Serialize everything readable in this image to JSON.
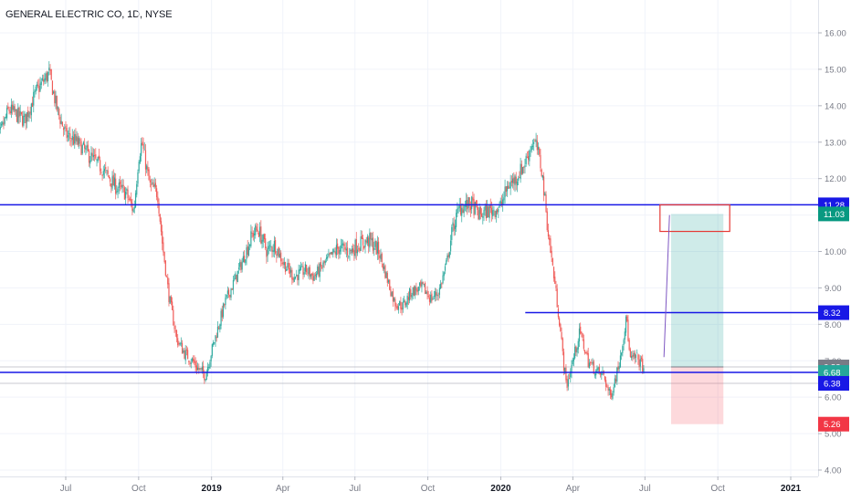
{
  "chart_data": {
    "type": "candlestick",
    "title": "GENERAL ELECTRIC CO, 1D, NYSE",
    "ylim": [
      3.7,
      16.7
    ],
    "y_ticks": [
      "16.00",
      "15.00",
      "14.00",
      "13.00",
      "12.00",
      "11.00",
      "10.00",
      "9.00",
      "8.00",
      "7.00",
      "6.00",
      "5.00",
      "4.00"
    ],
    "x_ticks": [
      {
        "label": "Jul",
        "bold": false,
        "x": "2018-07-01"
      },
      {
        "label": "Oct",
        "bold": false,
        "x": "2018-10-01"
      },
      {
        "label": "2019",
        "bold": true,
        "x": "2019-01-01"
      },
      {
        "label": "Apr",
        "bold": false,
        "x": "2019-04-01"
      },
      {
        "label": "Jul",
        "bold": false,
        "x": "2019-07-01"
      },
      {
        "label": "Oct",
        "bold": false,
        "x": "2019-10-01"
      },
      {
        "label": "2020",
        "bold": true,
        "x": "2020-01-01"
      },
      {
        "label": "Apr",
        "bold": false,
        "x": "2020-04-01"
      },
      {
        "label": "Jul",
        "bold": false,
        "x": "2020-07-01"
      },
      {
        "label": "Oct",
        "bold": false,
        "x": "2020-10-01"
      },
      {
        "label": "2021",
        "bold": true,
        "x": "2021-01-01"
      }
    ],
    "series": [
      {
        "name": "close",
        "points": [
          [
            "2018-04-01",
            12.7
          ],
          [
            "2018-04-20",
            13.9
          ],
          [
            "2018-05-10",
            13.6
          ],
          [
            "2018-05-25",
            14.4
          ],
          [
            "2018-06-10",
            14.9
          ],
          [
            "2018-06-20",
            13.9
          ],
          [
            "2018-07-01",
            13.2
          ],
          [
            "2018-07-15",
            13.0
          ],
          [
            "2018-08-01",
            12.6
          ],
          [
            "2018-08-15",
            12.3
          ],
          [
            "2018-09-01",
            11.8
          ],
          [
            "2018-09-15",
            11.6
          ],
          [
            "2018-09-25",
            11.1
          ],
          [
            "2018-10-01",
            12.6
          ],
          [
            "2018-10-05",
            13.0
          ],
          [
            "2018-10-15",
            11.8
          ],
          [
            "2018-10-25",
            11.6
          ],
          [
            "2018-10-31",
            10.2
          ],
          [
            "2018-11-08",
            8.8
          ],
          [
            "2018-11-18",
            7.6
          ],
          [
            "2018-11-28",
            7.2
          ],
          [
            "2018-12-08",
            7.0
          ],
          [
            "2018-12-14",
            6.8
          ],
          [
            "2018-12-24",
            6.6
          ],
          [
            "2019-01-04",
            7.5
          ],
          [
            "2019-01-18",
            8.6
          ],
          [
            "2019-02-01",
            9.3
          ],
          [
            "2019-02-12",
            9.9
          ],
          [
            "2019-02-22",
            10.5
          ],
          [
            "2019-03-01",
            10.6
          ],
          [
            "2019-03-12",
            10.0
          ],
          [
            "2019-03-22",
            10.2
          ],
          [
            "2019-04-01",
            9.7
          ],
          [
            "2019-04-15",
            9.3
          ],
          [
            "2019-04-30",
            9.5
          ],
          [
            "2019-05-10",
            9.3
          ],
          [
            "2019-05-25",
            9.7
          ],
          [
            "2019-06-10",
            10.1
          ],
          [
            "2019-06-25",
            10.0
          ],
          [
            "2019-07-05",
            10.2
          ],
          [
            "2019-07-20",
            10.3
          ],
          [
            "2019-07-31",
            10.0
          ],
          [
            "2019-08-10",
            9.3
          ],
          [
            "2019-08-20",
            8.6
          ],
          [
            "2019-08-31",
            8.5
          ],
          [
            "2019-09-10",
            8.9
          ],
          [
            "2019-09-25",
            9.0
          ],
          [
            "2019-10-05",
            8.7
          ],
          [
            "2019-10-15",
            8.9
          ],
          [
            "2019-10-25",
            9.7
          ],
          [
            "2019-11-01",
            10.6
          ],
          [
            "2019-11-10",
            11.2
          ],
          [
            "2019-11-25",
            11.3
          ],
          [
            "2019-12-05",
            11.0
          ],
          [
            "2019-12-15",
            11.1
          ],
          [
            "2019-12-31",
            11.2
          ],
          [
            "2020-01-10",
            11.8
          ],
          [
            "2020-01-20",
            12.0
          ],
          [
            "2020-01-31",
            12.4
          ],
          [
            "2020-02-10",
            13.0
          ],
          [
            "2020-02-15",
            12.9
          ],
          [
            "2020-02-22",
            12.2
          ],
          [
            "2020-03-01",
            10.5
          ],
          [
            "2020-03-10",
            9.0
          ],
          [
            "2020-03-15",
            8.1
          ],
          [
            "2020-03-20",
            7.0
          ],
          [
            "2020-03-24",
            6.3
          ],
          [
            "2020-04-01",
            7.0
          ],
          [
            "2020-04-10",
            7.8
          ],
          [
            "2020-04-20",
            7.0
          ],
          [
            "2020-05-01",
            6.7
          ],
          [
            "2020-05-10",
            6.6
          ],
          [
            "2020-05-18",
            6.0
          ],
          [
            "2020-05-28",
            6.8
          ],
          [
            "2020-06-08",
            8.2
          ],
          [
            "2020-06-12",
            7.0
          ],
          [
            "2020-06-20",
            7.1
          ],
          [
            "2020-06-30",
            6.8
          ]
        ]
      }
    ],
    "horizontal_lines": [
      {
        "value": 11.28,
        "label": "11.28",
        "style": "full",
        "start": null
      },
      {
        "value": 8.32,
        "label": "8.32",
        "style": "partial",
        "start": "2020-02-01"
      },
      {
        "value": 6.68,
        "label": "6.68",
        "style": "full",
        "start": null
      }
    ],
    "gray_lines": [
      6.83,
      6.38
    ],
    "price_labels": [
      {
        "value": 11.28,
        "label": "11.28",
        "color": "#1818e6"
      },
      {
        "value": 11.03,
        "label": "11.03",
        "color": "#089981"
      },
      {
        "value": 8.32,
        "label": "8.32",
        "color": "#1818e6"
      },
      {
        "value": 6.83,
        "label": "6.83",
        "color": "#787b86"
      },
      {
        "value": 6.68,
        "label": "6.68",
        "color": "#26a69a"
      },
      {
        "value": 6.38,
        "label": "6.38",
        "color": "#1818e6"
      },
      {
        "value": 5.26,
        "label": "5.26",
        "color": "#f23645"
      }
    ],
    "position": {
      "x_start": "2020-08-03",
      "x_end": "2020-10-08",
      "entry": 6.83,
      "target": 11.03,
      "stop": 5.26,
      "profit_color": "#26a69a",
      "loss_color": "#f7525f"
    },
    "rectangle": {
      "x_start": "2020-07-20",
      "x_end": "2020-10-16",
      "top": 11.28,
      "bottom": 10.55,
      "color": "#e53935"
    },
    "trendline": {
      "start": [
        "2020-07-25",
        7.1
      ],
      "end": [
        "2020-08-01",
        11.0
      ],
      "color": "#7e57c2"
    },
    "colors": {
      "axis": "#787b86",
      "grid": "#f0f3fa",
      "line": "#1818e6",
      "up": "#26a69a",
      "down": "#ef5350"
    }
  }
}
